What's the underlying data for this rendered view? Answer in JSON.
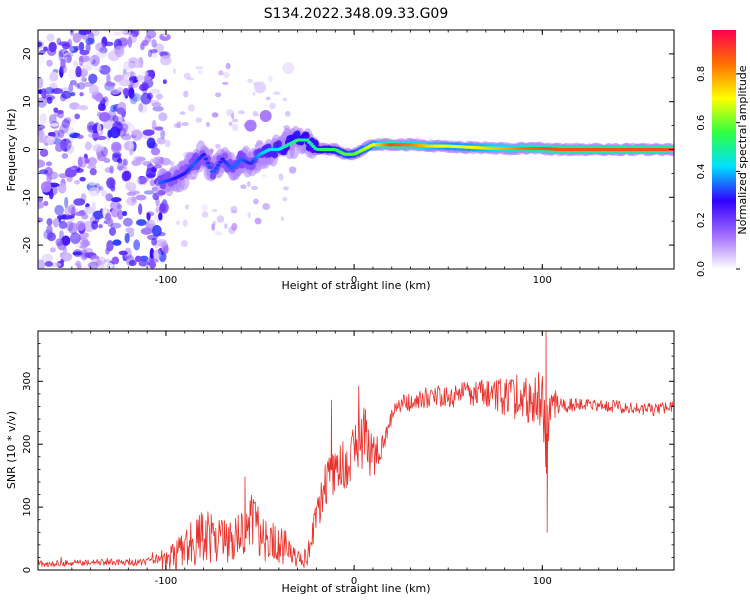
{
  "figure": {
    "title": "S134.2022.348.09.33.G09"
  },
  "colors": {
    "snr_line": "#e8322b",
    "ridge_high": "#e8003c",
    "ridge_mid": "#7df000",
    "ridge_low": "#0a28ff",
    "noise": "#6a00e8",
    "background": "#ffffff"
  },
  "colorbar": {
    "label": "Normalized spectral amplitude",
    "ticks": [
      "0.0",
      "0.2",
      "0.4",
      "0.6",
      "0.8"
    ],
    "tick_values": [
      0.0,
      0.2,
      0.4,
      0.6,
      0.8
    ],
    "range": [
      0,
      0.98
    ],
    "stops": [
      "#ffffff",
      "#a06bff",
      "#3000ff",
      "#00e0ff",
      "#30ff40",
      "#ffff00",
      "#ff7000",
      "#ff0050"
    ]
  },
  "chart_data": [
    {
      "type": "heatmap",
      "title": "",
      "xlabel": "Height of straight line (km)",
      "ylabel": "Frequency (Hz)",
      "xlim": [
        -168,
        170
      ],
      "ylim": [
        -25,
        25
      ],
      "x_ticks": [
        -100,
        0,
        100
      ],
      "x_tick_labels": [
        "-100",
        "0",
        "100"
      ],
      "y_ticks": [
        -20,
        -10,
        0,
        10,
        20
      ],
      "y_tick_labels": [
        "-20",
        "-10",
        "0",
        "10",
        "20"
      ],
      "ridge": {
        "x": [
          -103,
          -95,
          -90,
          -85,
          -80,
          -75,
          -70,
          -65,
          -60,
          -55,
          -50,
          -45,
          -40,
          -35,
          -30,
          -25,
          -20,
          -15,
          -10,
          -5,
          0,
          5,
          10,
          20,
          30,
          40,
          50,
          60,
          70,
          80,
          90,
          100,
          110,
          120,
          130,
          140,
          150,
          160,
          170
        ],
        "freq": [
          -7,
          -6,
          -5,
          -3,
          -1,
          -5,
          -2,
          -4,
          -2,
          -3,
          -1,
          0,
          0,
          1,
          2,
          2,
          0,
          0,
          0,
          -1,
          -1,
          0,
          1,
          1,
          1,
          0.7,
          0.7,
          0.5,
          0.3,
          0.2,
          0.2,
          0.2,
          0,
          0,
          0,
          0,
          0,
          0,
          0
        ],
        "amplitude": [
          0.35,
          0.3,
          0.3,
          0.35,
          0.3,
          0.35,
          0.3,
          0.35,
          0.35,
          0.3,
          0.4,
          0.45,
          0.45,
          0.5,
          0.55,
          0.5,
          0.5,
          0.55,
          0.55,
          0.6,
          0.6,
          0.65,
          0.7,
          0.9,
          0.85,
          0.75,
          0.7,
          0.7,
          0.75,
          0.8,
          0.85,
          0.9,
          0.9,
          0.9,
          0.9,
          0.9,
          0.9,
          0.9,
          0.9
        ]
      },
      "noise_region": {
        "x": [
          -168,
          -100
        ],
        "freq": [
          -25,
          25
        ],
        "amplitude_max": 0.15
      },
      "secondary_blobs": [
        {
          "x": -55,
          "freq": 5,
          "amplitude": 0.15
        },
        {
          "x": -47,
          "freq": 7,
          "amplitude": 0.15
        },
        {
          "x": -50,
          "freq": 13,
          "amplitude": 0.05
        },
        {
          "x": -35,
          "freq": 17,
          "amplitude": 0.03
        }
      ]
    },
    {
      "type": "line",
      "title": "",
      "xlabel": "Height of straight line (km)",
      "ylabel": "SNR (10 * v/v)",
      "xlim": [
        -168,
        170
      ],
      "ylim": [
        0,
        380
      ],
      "x_ticks": [
        -100,
        0,
        100
      ],
      "x_tick_labels": [
        "-100",
        "0",
        "100"
      ],
      "y_ticks": [
        0,
        100,
        200,
        300
      ],
      "y_tick_labels": [
        "0",
        "100",
        "200",
        "300"
      ],
      "envelope": {
        "x": [
          -168,
          -140,
          -110,
          -95,
          -90,
          -85,
          -80,
          -75,
          -70,
          -60,
          -55,
          -50,
          -45,
          -40,
          -35,
          -30,
          -25,
          -22,
          -18,
          -15,
          -10,
          -5,
          0,
          5,
          10,
          15,
          20,
          25,
          30,
          40,
          50,
          60,
          70,
          80,
          90,
          95,
          100,
          102,
          104,
          110,
          120,
          130,
          140,
          150,
          160,
          170
        ],
        "mean": [
          10,
          12,
          12,
          20,
          35,
          45,
          55,
          50,
          45,
          60,
          70,
          55,
          45,
          40,
          35,
          15,
          20,
          60,
          110,
          140,
          160,
          170,
          190,
          210,
          180,
          200,
          245,
          265,
          265,
          275,
          275,
          280,
          280,
          275,
          270,
          270,
          275,
          200,
          260,
          262,
          262,
          262,
          260,
          258,
          255,
          260
        ],
        "noise": [
          5,
          5,
          6,
          25,
          30,
          40,
          40,
          40,
          35,
          45,
          55,
          45,
          35,
          30,
          25,
          15,
          20,
          25,
          35,
          40,
          40,
          45,
          45,
          50,
          35,
          20,
          15,
          15,
          15,
          18,
          18,
          20,
          22,
          30,
          35,
          40,
          45,
          60,
          25,
          12,
          10,
          10,
          10,
          10,
          10,
          10
        ]
      },
      "spikes": [
        {
          "x": 102,
          "y": 380
        },
        {
          "x": 102.6,
          "y": 60
        },
        {
          "x": -58,
          "y": 148
        },
        {
          "x": -12,
          "y": 270
        },
        {
          "x": 6,
          "y": 255
        }
      ]
    }
  ]
}
